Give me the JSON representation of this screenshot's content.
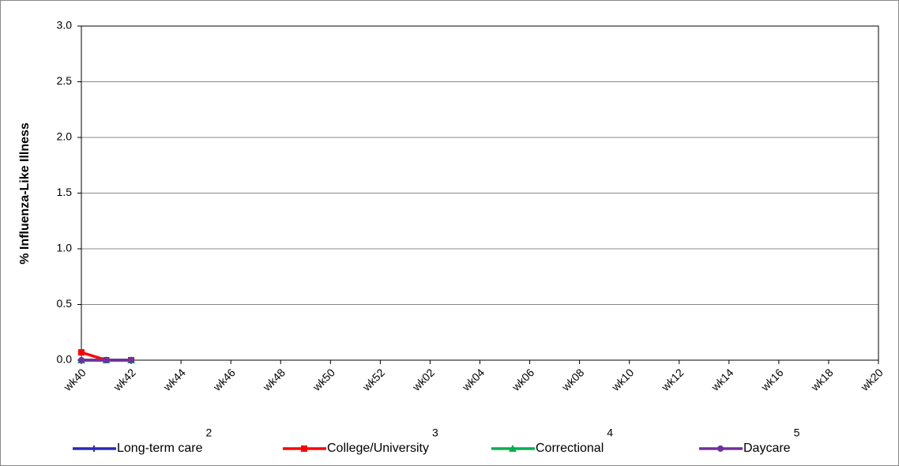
{
  "chart_data": {
    "type": "line",
    "y_label": "% Influenza-Like Illness",
    "categories": [
      "wk40",
      null,
      "wk42",
      null,
      "wk44",
      null,
      "wk46",
      null,
      "wk48",
      null,
      "wk50",
      null,
      "wk52",
      null,
      "wk02",
      null,
      "wk04",
      null,
      "wk06",
      null,
      "wk08",
      null,
      "wk10",
      null,
      "wk12",
      null,
      "wk14",
      null,
      "wk16",
      null,
      "wk18",
      null,
      "wk20"
    ],
    "ylim": [
      0,
      3
    ],
    "yticks": [
      {
        "value": 0,
        "label": "0.0"
      },
      {
        "value": 0.5,
        "label": "0.5"
      },
      {
        "value": 1,
        "label": "1.0"
      },
      {
        "value": 1.5,
        "label": "1.5"
      },
      {
        "value": 2,
        "label": "2.0"
      },
      {
        "value": 2.5,
        "label": "2.5"
      },
      {
        "value": 3,
        "label": "3.0"
      }
    ],
    "grid": true,
    "series": [
      {
        "name": "Long-term care",
        "footnote": "2",
        "color": "#2a2ab8",
        "marker": "plus",
        "values": [
          0,
          0,
          0,
          null,
          null,
          null,
          null,
          null,
          null,
          null,
          null,
          null,
          null,
          null,
          null,
          null,
          null,
          null,
          null,
          null,
          null,
          null,
          null,
          null,
          null,
          null,
          null,
          null,
          null,
          null,
          null,
          null,
          null
        ]
      },
      {
        "name": "College/University",
        "footnote": "3",
        "color": "#ff0000",
        "marker": "square",
        "values": [
          0.07,
          0,
          0,
          null,
          null,
          null,
          null,
          null,
          null,
          null,
          null,
          null,
          null,
          null,
          null,
          null,
          null,
          null,
          null,
          null,
          null,
          null,
          null,
          null,
          null,
          null,
          null,
          null,
          null,
          null,
          null,
          null,
          null
        ]
      },
      {
        "name": "Correctional",
        "footnote": "4",
        "color": "#00b050",
        "marker": "triangle",
        "values": [
          0,
          0,
          0,
          null,
          null,
          null,
          null,
          null,
          null,
          null,
          null,
          null,
          null,
          null,
          null,
          null,
          null,
          null,
          null,
          null,
          null,
          null,
          null,
          null,
          null,
          null,
          null,
          null,
          null,
          null,
          null,
          null,
          null
        ]
      },
      {
        "name": "Daycare",
        "footnote": "5",
        "color": "#7030a0",
        "marker": "circle",
        "values": [
          0,
          0,
          0,
          null,
          null,
          null,
          null,
          null,
          null,
          null,
          null,
          null,
          null,
          null,
          null,
          null,
          null,
          null,
          null,
          null,
          null,
          null,
          null,
          null,
          null,
          null,
          null,
          null,
          null,
          null,
          null,
          null,
          null
        ]
      }
    ]
  }
}
